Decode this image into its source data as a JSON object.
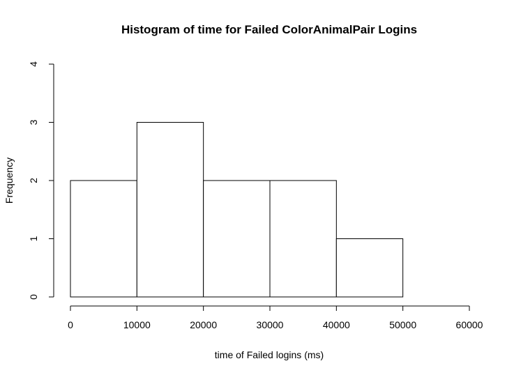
{
  "chart_data": {
    "type": "bar",
    "title": "Histogram of time for Failed ColorAnimalPair Logins",
    "xlabel": "time of Failed logins (ms)",
    "ylabel": "Frequency",
    "bins": [
      {
        "start": 0,
        "end": 10000,
        "count": 2
      },
      {
        "start": 10000,
        "end": 20000,
        "count": 3
      },
      {
        "start": 20000,
        "end": 30000,
        "count": 2
      },
      {
        "start": 30000,
        "end": 40000,
        "count": 2
      },
      {
        "start": 40000,
        "end": 50000,
        "count": 1
      }
    ],
    "xlim": [
      0,
      60000
    ],
    "ylim": [
      0,
      4
    ],
    "x_ticks": [
      "0",
      "10000",
      "20000",
      "30000",
      "40000",
      "50000",
      "60000"
    ],
    "y_ticks": [
      "0",
      "1",
      "2",
      "3",
      "4"
    ],
    "grid": false,
    "colors": {
      "bar_fill": "#ffffff",
      "bar_stroke": "#000000"
    }
  }
}
